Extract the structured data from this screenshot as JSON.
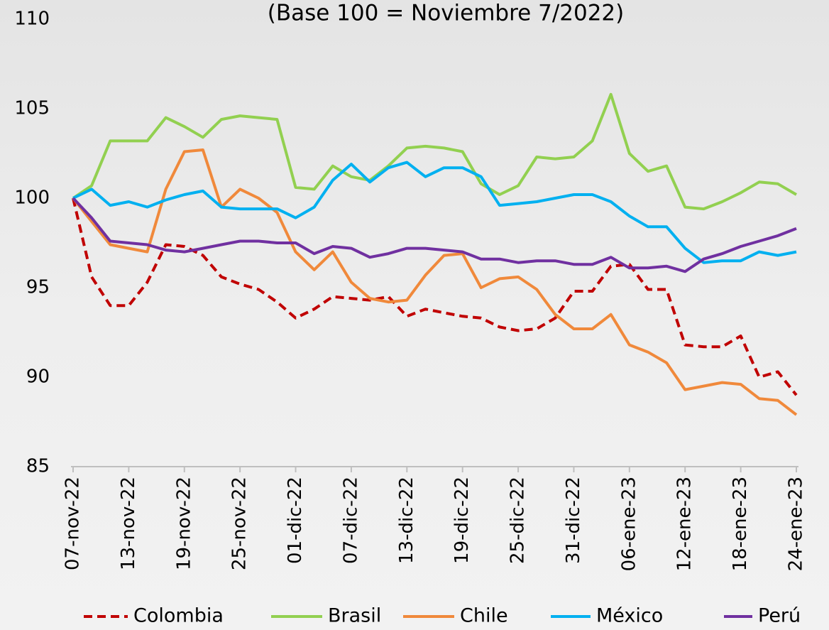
{
  "chart_data": {
    "type": "line",
    "title": "(Base 100 = Noviembre 7/2022)",
    "categories": [
      "07-nov-22",
      null,
      null,
      "13-nov-22",
      null,
      null,
      "19-nov-22",
      null,
      null,
      "25-nov-22",
      null,
      null,
      "01-dic-22",
      null,
      null,
      "07-dic-22",
      null,
      null,
      "13-dic-22",
      null,
      null,
      "19-dic-22",
      null,
      null,
      "25-dic-22",
      null,
      null,
      "31-dic-22",
      null,
      null,
      "06-ene-23",
      null,
      null,
      "12-ene-23",
      null,
      null,
      "18-ene-23",
      null,
      null,
      "24-ene-23"
    ],
    "series": [
      {
        "name": "Colombia",
        "color": "#c00000",
        "dashed": true,
        "values": [
          100,
          95.6,
          94.0,
          94.0,
          95.3,
          97.4,
          97.3,
          96.8,
          95.6,
          95.2,
          94.9,
          94.2,
          93.3,
          93.8,
          94.5,
          94.4,
          94.3,
          94.5,
          93.4,
          93.8,
          93.6,
          93.4,
          93.3,
          92.8,
          92.6,
          92.7,
          93.3,
          94.8,
          94.8,
          96.2,
          96.3,
          94.9,
          94.9,
          91.8,
          91.7,
          91.7,
          92.3,
          90.0,
          90.3,
          89.0
        ]
      },
      {
        "name": "Brasil",
        "color": "#92d050",
        "values": [
          100,
          100.7,
          103.2,
          103.2,
          103.2,
          104.5,
          104.0,
          103.4,
          104.4,
          104.6,
          104.5,
          104.4,
          100.6,
          100.5,
          101.8,
          101.2,
          101.0,
          101.8,
          102.8,
          102.9,
          102.8,
          102.6,
          100.8,
          100.2,
          100.7,
          102.3,
          102.2,
          102.3,
          103.2,
          105.8,
          102.5,
          101.5,
          101.8,
          99.5,
          99.4,
          99.8,
          100.3,
          100.9,
          100.8,
          100.2
        ]
      },
      {
        "name": "Chile",
        "color": "#f0893b",
        "values": [
          100,
          98.7,
          97.4,
          97.2,
          97.0,
          100.5,
          102.6,
          102.7,
          99.5,
          100.5,
          100.0,
          99.2,
          97.0,
          96.0,
          97.0,
          95.3,
          94.4,
          94.2,
          94.3,
          95.7,
          96.8,
          96.9,
          95.0,
          95.5,
          95.6,
          94.9,
          93.5,
          92.7,
          92.7,
          93.5,
          91.8,
          91.4,
          90.8,
          89.3,
          89.5,
          89.7,
          89.6,
          88.8,
          88.7,
          87.9
        ]
      },
      {
        "name": "México",
        "color": "#00b0f0",
        "values": [
          100,
          100.5,
          99.6,
          99.8,
          99.5,
          99.9,
          100.2,
          100.4,
          99.5,
          99.4,
          99.4,
          99.4,
          98.9,
          99.5,
          101.0,
          101.9,
          100.9,
          101.7,
          102.0,
          101.2,
          101.7,
          101.7,
          101.2,
          99.6,
          99.7,
          99.8,
          100.0,
          100.2,
          100.2,
          99.8,
          99.0,
          98.4,
          98.4,
          97.2,
          96.4,
          96.5,
          96.5,
          97.0,
          96.8,
          97.0
        ]
      },
      {
        "name": "Perú",
        "color": "#7030a0",
        "values": [
          100,
          98.9,
          97.6,
          97.5,
          97.4,
          97.1,
          97.0,
          97.2,
          97.4,
          97.6,
          97.6,
          97.5,
          97.5,
          96.9,
          97.3,
          97.2,
          96.7,
          96.9,
          97.2,
          97.2,
          97.1,
          97.0,
          96.6,
          96.6,
          96.4,
          96.5,
          96.5,
          96.3,
          96.3,
          96.7,
          96.1,
          96.1,
          96.2,
          95.9,
          96.6,
          96.9,
          97.3,
          97.6,
          97.9,
          98.3
        ]
      }
    ],
    "ylim": [
      85,
      110
    ],
    "yticks": [
      85,
      90,
      95,
      100,
      105,
      110
    ],
    "grid": false,
    "legend": "bottom"
  }
}
